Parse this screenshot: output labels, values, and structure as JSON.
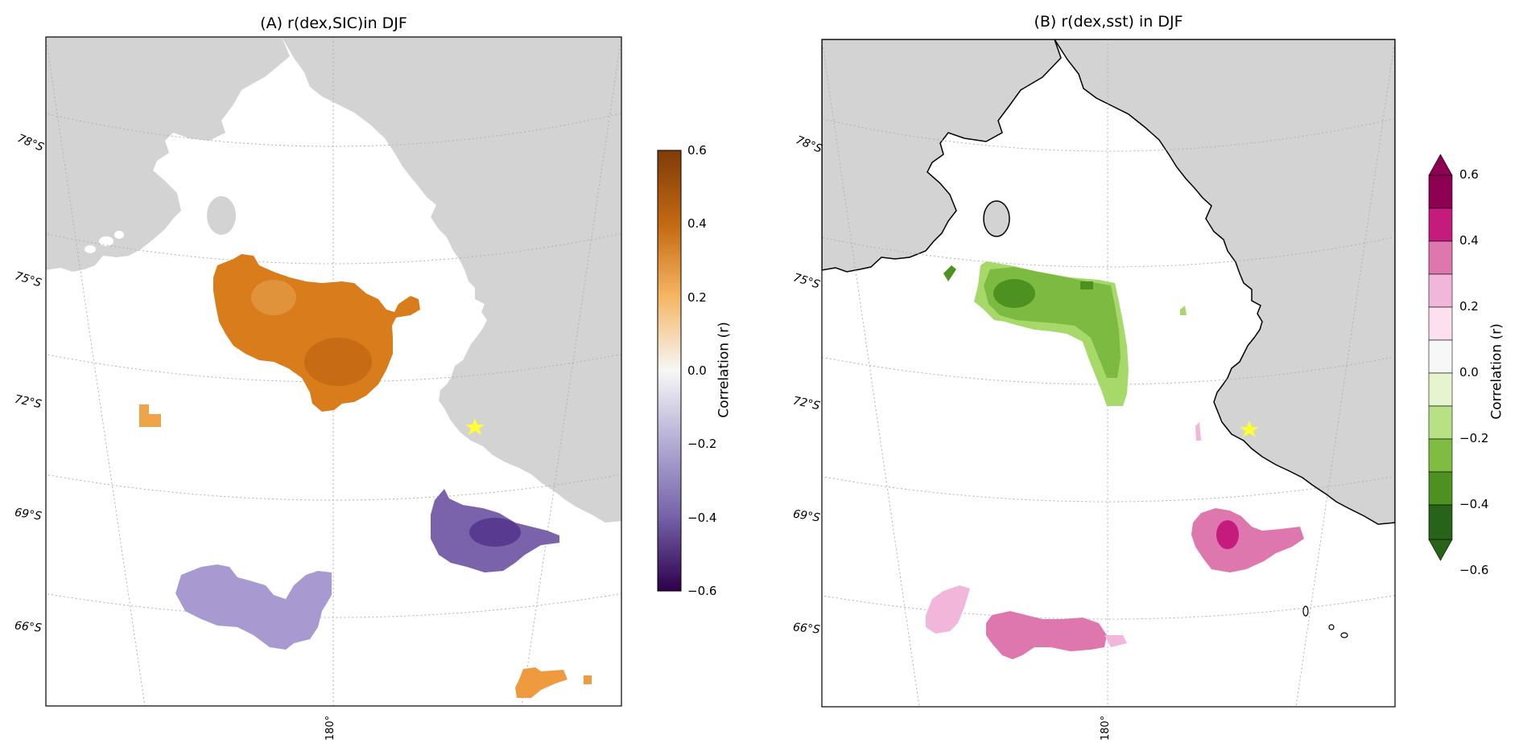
{
  "panels": [
    {
      "title": "(A) r(dex,SIC)in DJF",
      "lat_labels": [
        "78°S",
        "75°S",
        "72°S",
        "69°S",
        "66°S"
      ],
      "lon_label": "180°",
      "colorbar": {
        "label": "Correlation (r)",
        "ticks": [
          "0.6",
          "0.4",
          "0.2",
          "0.0",
          "−0.2",
          "−0.4",
          "−0.6"
        ],
        "colormap": "PuOr_r",
        "extend": "neither"
      }
    },
    {
      "title": "(B) r(dex,sst) in DJF",
      "lat_labels": [
        "78°S",
        "75°S",
        "72°S",
        "69°S",
        "66°S"
      ],
      "lon_label": "180°",
      "colorbar": {
        "label": "Correlation (r)",
        "ticks": [
          "0.6",
          "0.4",
          "0.2",
          "0.0",
          "−0.2",
          "−0.4",
          "−0.6"
        ],
        "colormap": "PiYG_r",
        "extend": "both"
      }
    }
  ],
  "colors": {
    "land": "#d3d3d3",
    "ocean": "#ffffff",
    "gridline": "#b0b0b0",
    "station_marker": "#ffff33"
  },
  "icons": {
    "station_marker": "star-icon"
  }
}
